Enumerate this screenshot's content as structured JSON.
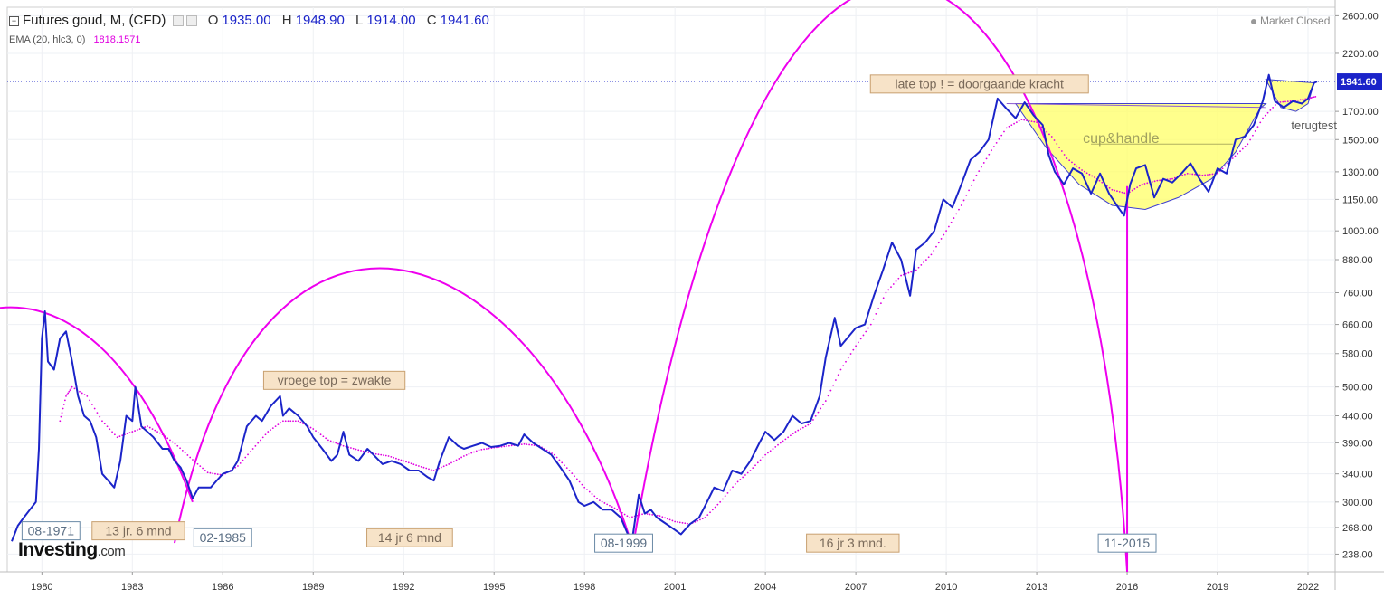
{
  "header": {
    "symbol": "Futures goud, M, (CFD)",
    "open_label": "O",
    "open": "1935.00",
    "high_label": "H",
    "high": "1948.90",
    "low_label": "L",
    "low": "1914.00",
    "close_label": "C",
    "close": "1941.60",
    "indicator": "EMA (20, hlc3, 0)",
    "indicator_value": "1818.1571",
    "market_status": "Market Closed"
  },
  "brand": {
    "name": "Investing",
    "suffix": ".com"
  },
  "colors": {
    "price": "#1b24c9",
    "ema": "#e000e0",
    "arc": "#ee00ee",
    "cup_fill": "#ffff66",
    "label_bg": "#f7e3c8"
  },
  "chart_data": {
    "type": "line",
    "x_ticks": [
      "1980",
      "1983",
      "1986",
      "1989",
      "1992",
      "1995",
      "1998",
      "2001",
      "2004",
      "2007",
      "2010",
      "2013",
      "2016",
      "2019",
      "2022"
    ],
    "y_ticks": [
      "2600.00",
      "2200.00",
      "1700.00",
      "1500.00",
      "1300.00",
      "1150.00",
      "1000.00",
      "880.00",
      "760.00",
      "660.00",
      "580.00",
      "500.00",
      "440.00",
      "390.00",
      "340.00",
      "300.00",
      "268.00",
      "238.00"
    ],
    "last_price": "1941.60",
    "series": [
      {
        "name": "Futures goud",
        "points": [
          [
            1979.0,
            252
          ],
          [
            1979.2,
            270
          ],
          [
            1979.4,
            280
          ],
          [
            1979.6,
            290
          ],
          [
            1979.8,
            300
          ],
          [
            1979.9,
            380
          ],
          [
            1980.0,
            620
          ],
          [
            1980.1,
            700
          ],
          [
            1980.2,
            560
          ],
          [
            1980.4,
            540
          ],
          [
            1980.6,
            620
          ],
          [
            1980.8,
            640
          ],
          [
            1981.0,
            560
          ],
          [
            1981.2,
            480
          ],
          [
            1981.4,
            440
          ],
          [
            1981.6,
            430
          ],
          [
            1981.8,
            400
          ],
          [
            1982.0,
            340
          ],
          [
            1982.2,
            330
          ],
          [
            1982.4,
            320
          ],
          [
            1982.6,
            360
          ],
          [
            1982.8,
            440
          ],
          [
            1983.0,
            430
          ],
          [
            1983.1,
            500
          ],
          [
            1983.3,
            420
          ],
          [
            1983.5,
            410
          ],
          [
            1983.7,
            400
          ],
          [
            1984.0,
            380
          ],
          [
            1984.2,
            380
          ],
          [
            1984.4,
            360
          ],
          [
            1984.6,
            350
          ],
          [
            1984.8,
            330
          ],
          [
            1985.0,
            305
          ],
          [
            1985.2,
            320
          ],
          [
            1985.4,
            320
          ],
          [
            1985.6,
            320
          ],
          [
            1985.8,
            330
          ],
          [
            1986.0,
            340
          ],
          [
            1986.3,
            345
          ],
          [
            1986.5,
            360
          ],
          [
            1986.8,
            420
          ],
          [
            1987.1,
            440
          ],
          [
            1987.3,
            430
          ],
          [
            1987.6,
            460
          ],
          [
            1987.9,
            480
          ],
          [
            1988.0,
            440
          ],
          [
            1988.2,
            455
          ],
          [
            1988.5,
            440
          ],
          [
            1988.8,
            420
          ],
          [
            1989.0,
            400
          ],
          [
            1989.3,
            380
          ],
          [
            1989.6,
            360
          ],
          [
            1989.8,
            370
          ],
          [
            1990.0,
            410
          ],
          [
            1990.2,
            370
          ],
          [
            1990.5,
            360
          ],
          [
            1990.8,
            380
          ],
          [
            1991.0,
            370
          ],
          [
            1991.3,
            355
          ],
          [
            1991.6,
            360
          ],
          [
            1991.9,
            355
          ],
          [
            1992.2,
            345
          ],
          [
            1992.5,
            345
          ],
          [
            1992.8,
            335
          ],
          [
            1993.0,
            330
          ],
          [
            1993.2,
            360
          ],
          [
            1993.5,
            400
          ],
          [
            1993.8,
            385
          ],
          [
            1994.0,
            380
          ],
          [
            1994.3,
            385
          ],
          [
            1994.6,
            390
          ],
          [
            1994.9,
            383
          ],
          [
            1995.2,
            385
          ],
          [
            1995.5,
            390
          ],
          [
            1995.8,
            385
          ],
          [
            1996.0,
            405
          ],
          [
            1996.3,
            390
          ],
          [
            1996.6,
            380
          ],
          [
            1996.9,
            370
          ],
          [
            1997.2,
            350
          ],
          [
            1997.5,
            330
          ],
          [
            1997.8,
            300
          ],
          [
            1998.0,
            295
          ],
          [
            1998.3,
            300
          ],
          [
            1998.6,
            290
          ],
          [
            1998.9,
            290
          ],
          [
            1999.2,
            280
          ],
          [
            1999.5,
            255
          ],
          [
            1999.6,
            258
          ],
          [
            1999.8,
            310
          ],
          [
            2000.0,
            285
          ],
          [
            2000.2,
            290
          ],
          [
            2000.4,
            280
          ],
          [
            2000.6,
            275
          ],
          [
            2000.8,
            270
          ],
          [
            2001.0,
            265
          ],
          [
            2001.2,
            260
          ],
          [
            2001.5,
            272
          ],
          [
            2001.8,
            280
          ],
          [
            2002.0,
            295
          ],
          [
            2002.3,
            320
          ],
          [
            2002.6,
            315
          ],
          [
            2002.9,
            345
          ],
          [
            2003.2,
            340
          ],
          [
            2003.5,
            360
          ],
          [
            2003.8,
            390
          ],
          [
            2004.0,
            410
          ],
          [
            2004.3,
            395
          ],
          [
            2004.6,
            410
          ],
          [
            2004.9,
            440
          ],
          [
            2005.2,
            425
          ],
          [
            2005.5,
            430
          ],
          [
            2005.8,
            480
          ],
          [
            2006.0,
            570
          ],
          [
            2006.3,
            680
          ],
          [
            2006.5,
            600
          ],
          [
            2006.8,
            630
          ],
          [
            2007.0,
            650
          ],
          [
            2007.3,
            660
          ],
          [
            2007.6,
            750
          ],
          [
            2007.9,
            840
          ],
          [
            2008.2,
            950
          ],
          [
            2008.5,
            880
          ],
          [
            2008.8,
            750
          ],
          [
            2009.0,
            920
          ],
          [
            2009.3,
            950
          ],
          [
            2009.6,
            1000
          ],
          [
            2009.9,
            1150
          ],
          [
            2010.2,
            1110
          ],
          [
            2010.5,
            1230
          ],
          [
            2010.8,
            1370
          ],
          [
            2011.1,
            1420
          ],
          [
            2011.4,
            1500
          ],
          [
            2011.7,
            1800
          ],
          [
            2012.0,
            1720
          ],
          [
            2012.3,
            1650
          ],
          [
            2012.6,
            1770
          ],
          [
            2012.9,
            1670
          ],
          [
            2013.2,
            1600
          ],
          [
            2013.4,
            1400
          ],
          [
            2013.6,
            1300
          ],
          [
            2013.9,
            1230
          ],
          [
            2014.2,
            1320
          ],
          [
            2014.5,
            1290
          ],
          [
            2014.8,
            1180
          ],
          [
            2015.1,
            1290
          ],
          [
            2015.4,
            1180
          ],
          [
            2015.7,
            1110
          ],
          [
            2015.9,
            1070
          ],
          [
            2016.1,
            1230
          ],
          [
            2016.3,
            1320
          ],
          [
            2016.6,
            1340
          ],
          [
            2016.9,
            1160
          ],
          [
            2017.2,
            1260
          ],
          [
            2017.5,
            1240
          ],
          [
            2017.8,
            1290
          ],
          [
            2018.1,
            1350
          ],
          [
            2018.4,
            1260
          ],
          [
            2018.7,
            1190
          ],
          [
            2019.0,
            1320
          ],
          [
            2019.3,
            1290
          ],
          [
            2019.6,
            1500
          ],
          [
            2019.9,
            1520
          ],
          [
            2020.2,
            1600
          ],
          [
            2020.5,
            1780
          ],
          [
            2020.7,
            2000
          ],
          [
            2020.9,
            1780
          ],
          [
            2021.2,
            1730
          ],
          [
            2021.5,
            1780
          ],
          [
            2021.8,
            1760
          ],
          [
            2022.0,
            1800
          ],
          [
            2022.2,
            1930
          ],
          [
            2022.3,
            1941.6
          ]
        ]
      },
      {
        "name": "EMA (20, hlc3, 0)",
        "points": [
          [
            1980.6,
            430
          ],
          [
            1980.8,
            480
          ],
          [
            1981.0,
            500
          ],
          [
            1981.5,
            480
          ],
          [
            1982.0,
            430
          ],
          [
            1982.5,
            400
          ],
          [
            1983.0,
            410
          ],
          [
            1983.5,
            420
          ],
          [
            1984.0,
            405
          ],
          [
            1984.5,
            385
          ],
          [
            1985.0,
            362
          ],
          [
            1985.5,
            342
          ],
          [
            1986.0,
            338
          ],
          [
            1986.5,
            352
          ],
          [
            1987.0,
            380
          ],
          [
            1987.5,
            410
          ],
          [
            1988.0,
            430
          ],
          [
            1988.5,
            430
          ],
          [
            1989.0,
            415
          ],
          [
            1989.5,
            395
          ],
          [
            1990.0,
            385
          ],
          [
            1990.5,
            378
          ],
          [
            1991.0,
            372
          ],
          [
            1991.5,
            368
          ],
          [
            1992.0,
            360
          ],
          [
            1992.5,
            352
          ],
          [
            1993.0,
            345
          ],
          [
            1993.5,
            355
          ],
          [
            1994.0,
            368
          ],
          [
            1994.5,
            378
          ],
          [
            1995.0,
            382
          ],
          [
            1995.5,
            385
          ],
          [
            1996.0,
            388
          ],
          [
            1996.5,
            385
          ],
          [
            1997.0,
            370
          ],
          [
            1997.5,
            345
          ],
          [
            1998.0,
            320
          ],
          [
            1998.5,
            302
          ],
          [
            1999.0,
            292
          ],
          [
            1999.5,
            280
          ],
          [
            2000.0,
            285
          ],
          [
            2000.5,
            282
          ],
          [
            2001.0,
            275
          ],
          [
            2001.5,
            272
          ],
          [
            2002.0,
            280
          ],
          [
            2002.5,
            300
          ],
          [
            2003.0,
            325
          ],
          [
            2003.5,
            345
          ],
          [
            2004.0,
            370
          ],
          [
            2004.5,
            390
          ],
          [
            2005.0,
            410
          ],
          [
            2005.5,
            425
          ],
          [
            2006.0,
            470
          ],
          [
            2006.5,
            540
          ],
          [
            2007.0,
            600
          ],
          [
            2007.5,
            660
          ],
          [
            2008.0,
            760
          ],
          [
            2008.5,
            820
          ],
          [
            2009.0,
            840
          ],
          [
            2009.5,
            900
          ],
          [
            2010.0,
            1000
          ],
          [
            2010.5,
            1120
          ],
          [
            2011.0,
            1280
          ],
          [
            2011.5,
            1430
          ],
          [
            2012.0,
            1580
          ],
          [
            2012.5,
            1640
          ],
          [
            2013.0,
            1620
          ],
          [
            2013.5,
            1520
          ],
          [
            2014.0,
            1380
          ],
          [
            2014.5,
            1310
          ],
          [
            2015.0,
            1260
          ],
          [
            2015.5,
            1200
          ],
          [
            2016.0,
            1180
          ],
          [
            2016.5,
            1230
          ],
          [
            2017.0,
            1250
          ],
          [
            2017.5,
            1260
          ],
          [
            2018.0,
            1290
          ],
          [
            2018.5,
            1280
          ],
          [
            2019.0,
            1290
          ],
          [
            2019.5,
            1380
          ],
          [
            2020.0,
            1470
          ],
          [
            2020.5,
            1650
          ],
          [
            2021.0,
            1770
          ],
          [
            2021.5,
            1780
          ],
          [
            2022.0,
            1800
          ],
          [
            2022.3,
            1818
          ]
        ]
      }
    ],
    "annotations": [
      {
        "text": "08-1971",
        "style": "date",
        "x": 1980.3,
        "y": 264
      },
      {
        "text": "13 jr. 6 mnd",
        "style": "period",
        "x": 1983.2,
        "y": 264
      },
      {
        "text": "02-1985",
        "style": "date",
        "x": 1986.0,
        "y": 256
      },
      {
        "text": "vroege top = zwakte",
        "style": "period",
        "x": 1989.7,
        "y": 515
      },
      {
        "text": "14 jr 6 mnd",
        "style": "period",
        "x": 1992.2,
        "y": 256
      },
      {
        "text": "08-1999",
        "style": "date",
        "x": 1999.3,
        "y": 250
      },
      {
        "text": "16 jr 3 mnd.",
        "style": "period",
        "x": 2006.9,
        "y": 250
      },
      {
        "text": "late top ! = doorgaande kracht",
        "style": "period",
        "x": 2011.1,
        "y": 1920
      },
      {
        "text": "cup&handle",
        "style": "plain",
        "x": 2015.8,
        "y": 1510
      },
      {
        "text": "11-2015",
        "style": "date",
        "x": 2016.0,
        "y": 250
      },
      {
        "text": "terugtest",
        "style": "plain",
        "x": 2022.2,
        "y": 1600
      }
    ],
    "arcs": [
      {
        "from": [
          1978.0,
          700
        ],
        "to": [
          1985.0,
          300
        ],
        "peak": [
          1978.5,
          700
        ]
      },
      {
        "from": [
          1984.4,
          250
        ],
        "to": [
          1999.6,
          245
        ],
        "peak": [
          1992.2,
          780
        ]
      },
      {
        "from": [
          1999.6,
          245
        ],
        "to": [
          2016.0,
          220
        ],
        "peak": [
          2013.1,
          2520
        ]
      }
    ],
    "x_range": [
      1978.85,
      2022.9
    ],
    "y_range": [
      220,
      2700
    ],
    "y_scale": "log",
    "grid": true
  }
}
